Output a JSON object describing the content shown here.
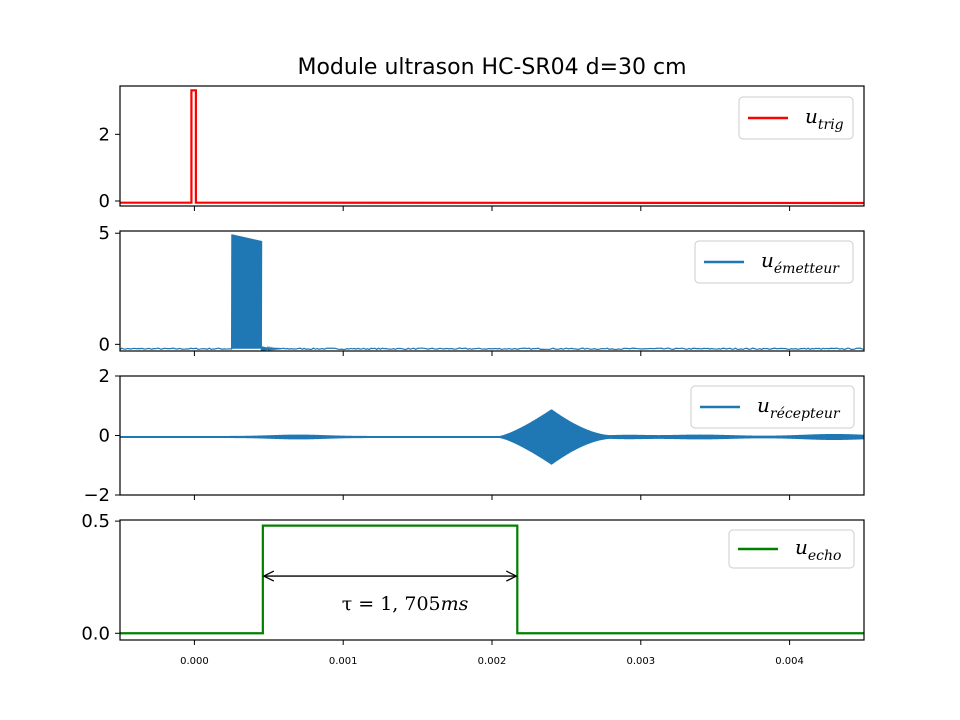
{
  "chart_data": {
    "type": "line",
    "title": "Module ultrason HC-SR04 d=30 cm",
    "xlim": [
      -0.0005,
      0.0045
    ],
    "x_ticks": [
      0.0,
      0.001,
      0.002,
      0.003,
      0.004
    ],
    "x_tick_labels": [
      "0.000",
      "0.001",
      "0.002",
      "0.003",
      "0.004"
    ],
    "grid": false,
    "legend_position": "top-right",
    "panels": [
      {
        "id": "trig",
        "series_name": "u_trig",
        "legend_main": "u",
        "legend_sub": "trig",
        "color": "#ff0000",
        "ylim": [
          -0.15,
          3.45
        ],
        "y_ticks": [
          0,
          2
        ],
        "y_tick_labels": [
          "0",
          "2"
        ],
        "points": [
          [
            -0.0005,
            -0.05
          ],
          [
            -2e-05,
            -0.05
          ],
          [
            -2e-05,
            3.32
          ],
          [
            1e-05,
            3.32
          ],
          [
            1e-05,
            -0.05
          ],
          [
            0.0045,
            -0.06
          ]
        ]
      },
      {
        "id": "emetteur",
        "series_name": "u_émetteur",
        "legend_main": "u",
        "legend_sub": "émetteur",
        "color": "#1f77b4",
        "ylim": [
          -0.3,
          5.1
        ],
        "y_ticks": [
          0,
          5
        ],
        "y_tick_labels": [
          "0",
          "5"
        ],
        "burst": {
          "x_start": 0.00025,
          "x_end": 0.00045,
          "top_start": 4.95,
          "top_end": 4.65,
          "low": -0.2
        },
        "baseline": -0.2
      },
      {
        "id": "recepteur",
        "series_name": "u_récepteur",
        "legend_main": "u",
        "legend_sub": "récepteur",
        "color": "#1f77b4",
        "ylim": [
          -2,
          2
        ],
        "y_ticks": [
          -2,
          0,
          2
        ],
        "y_tick_labels": [
          "−2",
          "0",
          "2"
        ],
        "echo": {
          "x_start": 0.00205,
          "x_peak": 0.0024,
          "x_end": 0.0028,
          "amplitude": 0.9
        },
        "baseline": -0.05
      },
      {
        "id": "echo",
        "series_name": "u_echo",
        "legend_main": "u",
        "legend_sub": "echo",
        "color": "#008000",
        "ylim": [
          -0.03,
          0.505
        ],
        "y_ticks": [
          0.0,
          0.5
        ],
        "y_tick_labels": [
          "0.0",
          "0.5"
        ],
        "points": [
          [
            -0.0005,
            0.0
          ],
          [
            0.00046,
            0.0
          ],
          [
            0.00046,
            0.48
          ],
          [
            0.00217,
            0.48
          ],
          [
            0.00217,
            0.0
          ],
          [
            0.0045,
            0.0
          ]
        ],
        "annotation": {
          "x_from": 0.00046,
          "x_to": 0.00217,
          "y": 0.255,
          "label_main": "τ = 1, 705",
          "label_unit": "ms"
        }
      }
    ]
  }
}
